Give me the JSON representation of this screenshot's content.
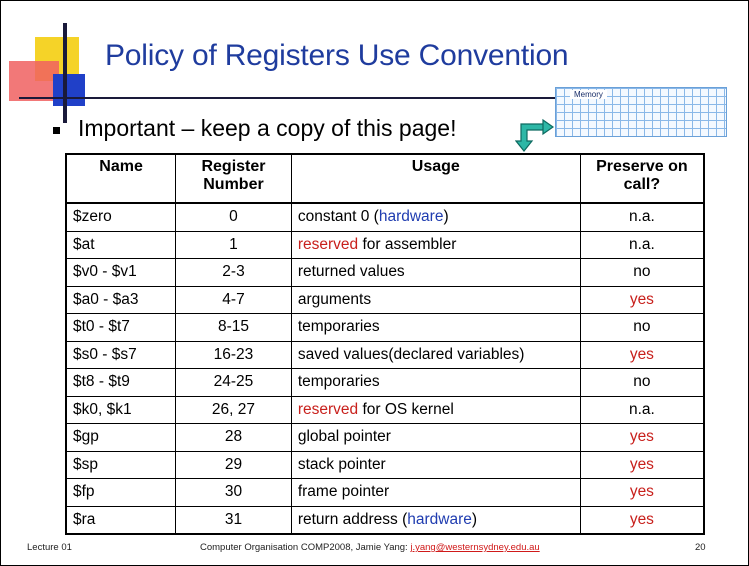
{
  "title": "Policy of Registers Use Convention",
  "bullet": "Important – keep a copy of this page!",
  "memory_label": "Memory",
  "table": {
    "headers": {
      "name": "Name",
      "number_line1": "Register",
      "number_line2": "Number",
      "usage": "Usage",
      "preserve_line1": "Preserve on",
      "preserve_line2": "call?"
    },
    "rows": [
      {
        "name": "$zero",
        "number": "0",
        "usage_pre": "constant 0 (",
        "usage_hl": "hardware",
        "usage_hl_color": "blue",
        "usage_post": ")",
        "preserve": "n.a.",
        "preserve_red": false
      },
      {
        "name": "$at",
        "number": "1",
        "usage_pre": "",
        "usage_hl": "reserved",
        "usage_hl_color": "red",
        "usage_post": " for assembler",
        "preserve": "n.a.",
        "preserve_red": false
      },
      {
        "name": "$v0 - $v1",
        "number": "2-3",
        "usage_pre": "returned values",
        "usage_hl": "",
        "usage_hl_color": "",
        "usage_post": "",
        "preserve": "no",
        "preserve_red": false
      },
      {
        "name": "$a0 - $a3",
        "number": "4-7",
        "usage_pre": "arguments",
        "usage_hl": "",
        "usage_hl_color": "",
        "usage_post": "",
        "preserve": "yes",
        "preserve_red": true
      },
      {
        "name": "$t0 - $t7",
        "number": "8-15",
        "usage_pre": "temporaries",
        "usage_hl": "",
        "usage_hl_color": "",
        "usage_post": "",
        "preserve": "no",
        "preserve_red": false
      },
      {
        "name": "$s0 - $s7",
        "number": "16-23",
        "usage_pre": "saved values(declared variables)",
        "usage_hl": "",
        "usage_hl_color": "",
        "usage_post": "",
        "preserve": "yes",
        "preserve_red": true
      },
      {
        "name": "$t8 - $t9",
        "number": "24-25",
        "usage_pre": "temporaries",
        "usage_hl": "",
        "usage_hl_color": "",
        "usage_post": "",
        "preserve": "no",
        "preserve_red": false
      },
      {
        "name": "$k0, $k1",
        "number": "26, 27",
        "usage_pre": "",
        "usage_hl": "reserved",
        "usage_hl_color": "red",
        "usage_post": " for OS kernel",
        "preserve": "n.a.",
        "preserve_red": false
      },
      {
        "name": "$gp",
        "number": "28",
        "usage_pre": "global pointer",
        "usage_hl": "",
        "usage_hl_color": "",
        "usage_post": "",
        "preserve": "yes",
        "preserve_red": true
      },
      {
        "name": "$sp",
        "number": "29",
        "usage_pre": "stack pointer",
        "usage_hl": "",
        "usage_hl_color": "",
        "usage_post": "",
        "preserve": "yes",
        "preserve_red": true
      },
      {
        "name": "$fp",
        "number": "30",
        "usage_pre": "frame pointer",
        "usage_hl": "",
        "usage_hl_color": "",
        "usage_post": "",
        "preserve": "yes",
        "preserve_red": true
      },
      {
        "name": "$ra",
        "number": "31",
        "usage_pre": "return address (",
        "usage_hl": "hardware",
        "usage_hl_color": "blue",
        "usage_post": ")",
        "preserve": "yes",
        "preserve_red": true
      }
    ]
  },
  "footer": {
    "left": "Lecture 01",
    "center": "Computer Organisation COMP2008, Jamie Yang: ",
    "email": "j.yang@westernsydney.edu.au",
    "page": "20"
  },
  "colors": {
    "title": "#1f3c9e",
    "highlight_red": "#c8201c",
    "highlight_blue": "#1f3cb0"
  }
}
